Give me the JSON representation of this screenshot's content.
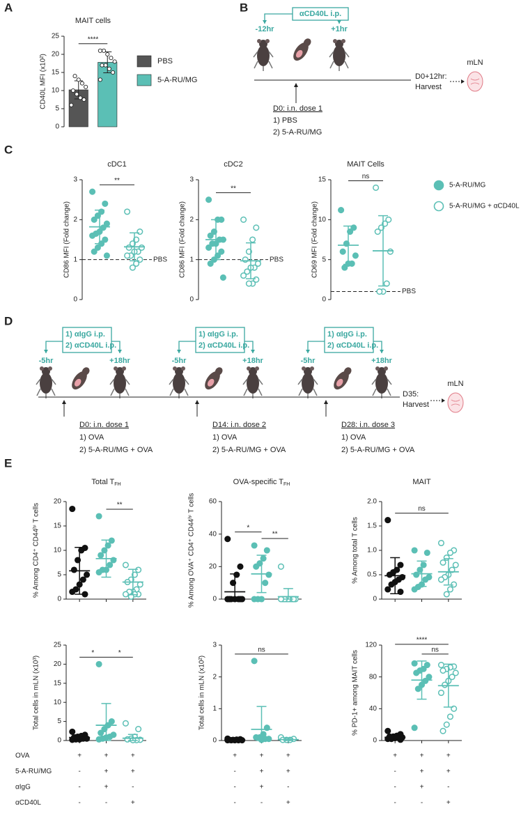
{
  "panel_labels": [
    "A",
    "B",
    "C",
    "D",
    "E"
  ],
  "chart_data": [
    {
      "type": "bar",
      "title": "MAIT cells",
      "ylabel": "CD40L MFI (x10²)",
      "categories": [
        "PBS",
        "5-A-RU/MG"
      ],
      "values": [
        10.2,
        17.8
      ],
      "errors": [
        2.5,
        2.9
      ],
      "colors": [
        "#555555",
        "#5bbfb5"
      ],
      "points": [
        [
          6,
          7.5,
          8,
          9,
          10,
          11,
          12,
          13,
          14
        ],
        [
          13,
          15,
          16,
          17,
          17,
          18,
          19,
          20,
          21,
          21
        ]
      ],
      "ylim": [
        0,
        25
      ],
      "yticks": [
        0,
        5,
        10,
        15,
        20,
        25
      ],
      "comparisons": [
        {
          "between": [
            0,
            1
          ],
          "label": "****"
        }
      ]
    },
    {
      "type": "dot",
      "title": "cDC1",
      "ylabel": "CD86 MFI (Fold change)",
      "ylim": [
        0,
        3
      ],
      "yticks": [
        0,
        1,
        2,
        3
      ],
      "reference": {
        "value": 1,
        "label": "PBS"
      },
      "series": [
        {
          "color": "#5bbfb5",
          "filled": true,
          "values": [
            2.7,
            2.4,
            2.2,
            2.1,
            2.0,
            1.9,
            1.8,
            1.7,
            1.65,
            1.6,
            1.5,
            1.4,
            1.3,
            1.2,
            1.1
          ],
          "mean": 1.82,
          "sd": 0.42
        },
        {
          "color": "#5bbfb5",
          "filled": false,
          "values": [
            2.2,
            1.7,
            1.5,
            1.4,
            1.3,
            1.3,
            1.2,
            1.2,
            1.1,
            1.1,
            1.0,
            0.9,
            0.8
          ],
          "mean": 1.32,
          "sd": 0.35
        }
      ],
      "comparisons": [
        {
          "between": [
            0,
            1
          ],
          "label": "**"
        }
      ]
    },
    {
      "type": "dot",
      "title": "cDC2",
      "ylabel": "CD86 MFI (Fold  change)",
      "ylim": [
        0,
        3
      ],
      "yticks": [
        0,
        1,
        2,
        3
      ],
      "reference": {
        "value": 1,
        "label": "PBS"
      },
      "series": [
        {
          "color": "#5bbfb5",
          "filled": true,
          "values": [
            2.5,
            2.0,
            2.0,
            1.7,
            1.6,
            1.5,
            1.5,
            1.4,
            1.4,
            1.3,
            1.2,
            1.1,
            1.0,
            0.9,
            0.55
          ],
          "mean": 1.5,
          "sd": 0.5
        },
        {
          "color": "#5bbfb5",
          "filled": false,
          "values": [
            2.0,
            1.8,
            1.5,
            1.2,
            1.0,
            0.9,
            0.8,
            0.8,
            0.7,
            0.6,
            0.5,
            0.4,
            0.4
          ],
          "mean": 0.97,
          "sd": 0.45
        }
      ],
      "comparisons": [
        {
          "between": [
            0,
            1
          ],
          "label": "**"
        }
      ]
    },
    {
      "type": "dot",
      "title": "MAIT Cells",
      "ylabel": "CD69 MFI (Fold change)",
      "ylim": [
        0,
        15
      ],
      "yticks": [
        0,
        5,
        10,
        15
      ],
      "reference": {
        "value": 1,
        "label": "PBS"
      },
      "series": [
        {
          "color": "#5bbfb5",
          "filled": true,
          "values": [
            11.2,
            9,
            8.5,
            7,
            6,
            5.5,
            4.5,
            4.5,
            4
          ],
          "mean": 6.8,
          "sd": 2.4
        },
        {
          "color": "#5bbfb5",
          "filled": false,
          "values": [
            14,
            10,
            9.5,
            9,
            8.5,
            6,
            2,
            1,
            1
          ],
          "mean": 6.1,
          "sd": 4.4
        }
      ],
      "comparisons": [
        {
          "between": [
            0,
            1
          ],
          "label": "ns"
        }
      ]
    },
    {
      "type": "dot",
      "title": "Total T",
      "title_sub": "FH",
      "ylabel": "% Among CD4⁺ CD44ʰⁱ T cells",
      "ylim": [
        0,
        20
      ],
      "yticks": [
        0,
        5,
        10,
        15,
        20
      ],
      "xaxis": true,
      "series": [
        {
          "color": "#111111",
          "filled": true,
          "values": [
            18.5,
            10.5,
            10,
            8,
            6,
            5,
            4,
            3,
            2,
            1.5,
            1
          ],
          "mean": 5.8,
          "sd": 4.8
        },
        {
          "color": "#5bbfb5",
          "filled": true,
          "values": [
            17,
            12,
            11,
            10,
            9,
            8,
            7,
            6,
            6,
            5.5
          ],
          "mean": 8.3,
          "sd": 3.8
        },
        {
          "color": "#5bbfb5",
          "filled": false,
          "values": [
            7,
            6,
            5,
            4,
            3.5,
            3,
            2,
            1.5,
            1.5,
            1,
            1,
            1,
            0.5
          ],
          "mean": 3.5,
          "sd": 2.6
        }
      ],
      "comparisons": [
        {
          "between": [
            1,
            2
          ],
          "label": "**"
        }
      ]
    },
    {
      "type": "dot",
      "title": "OVA-specific T",
      "title_sub": "FH",
      "ylabel": "% Among OVA⁺ CD4⁺ CD44ʰⁱ T cells",
      "ylim": [
        0,
        60
      ],
      "yticks": [
        0,
        20,
        40,
        60
      ],
      "xaxis": true,
      "series": [
        {
          "color": "#111111",
          "filled": true,
          "values": [
            37,
            20,
            15,
            10,
            0,
            0,
            0,
            0,
            0,
            0,
            0
          ],
          "mean": 4.5,
          "sd": 11
        },
        {
          "color": "#5bbfb5",
          "filled": true,
          "values": [
            33,
            30,
            25,
            22,
            20,
            15,
            10,
            0,
            0,
            0
          ],
          "mean": 15.5,
          "sd": 11.5
        },
        {
          "color": "#5bbfb5",
          "filled": false,
          "values": [
            20,
            0,
            0,
            0,
            0,
            0,
            0,
            0,
            0,
            0,
            0
          ],
          "mean": 1.5,
          "sd": 5
        }
      ],
      "comparisons": [
        {
          "between": [
            0,
            1
          ],
          "label": "*"
        },
        {
          "between": [
            1,
            2
          ],
          "label": "**"
        }
      ]
    },
    {
      "type": "dot",
      "title": "MAIT",
      "ylabel": "% Among total T cells",
      "ylim": [
        0,
        2
      ],
      "yticks": [
        0,
        {
          "value": 0.5,
          "label": "0.5"
        },
        {
          "value": 1,
          "label": "1.0"
        },
        {
          "value": 1.5,
          "label": "1.5"
        },
        {
          "value": 2,
          "label": "2.0"
        }
      ],
      "xaxis": true,
      "series": [
        {
          "color": "#111111",
          "filled": true,
          "values": [
            1.62,
            0.7,
            0.6,
            0.55,
            0.5,
            0.45,
            0.4,
            0.35,
            0.3,
            0.2,
            0.15
          ],
          "mean": 0.48,
          "sd": 0.37
        },
        {
          "color": "#5bbfb5",
          "filled": true,
          "values": [
            1.0,
            0.95,
            0.7,
            0.6,
            0.5,
            0.45,
            0.4,
            0.3,
            0.25,
            0.2
          ],
          "mean": 0.52,
          "sd": 0.26
        },
        {
          "color": "#5bbfb5",
          "filled": false,
          "values": [
            1.15,
            1.0,
            0.95,
            0.85,
            0.75,
            0.7,
            0.6,
            0.5,
            0.45,
            0.4,
            0.3,
            0.2,
            0.1
          ],
          "mean": 0.56,
          "sd": 0.27
        }
      ],
      "comparisons": [
        {
          "between": [
            0,
            2
          ],
          "label": "ns"
        }
      ]
    },
    {
      "type": "dot",
      "ylabel": "Total cells in mLN (x10³)",
      "ylim": [
        0,
        25
      ],
      "yticks": [
        0,
        5,
        10,
        15,
        20,
        25
      ],
      "xaxis": true,
      "series": [
        {
          "color": "#111111",
          "filled": true,
          "values": [
            2.3,
            1.5,
            1.2,
            1,
            0.8,
            0.5,
            0.5,
            0.3,
            0.3,
            0.2
          ],
          "mean": 0.8,
          "sd": 0.7
        },
        {
          "color": "#5bbfb5",
          "filled": true,
          "values": [
            20,
            5,
            4,
            3,
            2,
            1.5,
            1,
            0.8,
            0.5,
            0.3
          ],
          "mean": 4,
          "sd": 5.7
        },
        {
          "color": "#5bbfb5",
          "filled": false,
          "values": [
            4.5,
            3,
            1,
            0.5,
            0.3,
            0.2,
            0.1,
            0.1
          ],
          "mean": 0.6,
          "sd": 1
        }
      ],
      "comparisons": [
        {
          "between": [
            0,
            1
          ],
          "label": "*"
        },
        {
          "between": [
            1,
            2
          ],
          "label": "*"
        }
      ]
    },
    {
      "type": "dot",
      "ylabel": "Total cells in mLN (x10²)",
      "ylim": [
        0,
        3
      ],
      "yticks": [
        0,
        1,
        2,
        3
      ],
      "xaxis": true,
      "series": [
        {
          "color": "#111111",
          "filled": true,
          "values": [
            0.06,
            0.04,
            0.03,
            0.02,
            0.02,
            0.01,
            0.01,
            0.01,
            0.01,
            0.01
          ],
          "mean": 0.02,
          "sd": 0.03
        },
        {
          "color": "#5bbfb5",
          "filled": true,
          "values": [
            2.5,
            0.4,
            0.2,
            0.1,
            0.1,
            0.05,
            0.05,
            0.02
          ],
          "mean": 0.35,
          "sd": 0.72
        },
        {
          "color": "#5bbfb5",
          "filled": false,
          "values": [
            0.1,
            0.05,
            0.02,
            0.02,
            0.02
          ],
          "mean": 0.03,
          "sd": 0.04
        }
      ],
      "comparisons": [
        {
          "between": [
            0,
            2
          ],
          "label": "ns"
        }
      ]
    },
    {
      "type": "dot",
      "ylabel": "% PD-1+ among MAIT cells",
      "ylim": [
        0,
        120
      ],
      "yticks": [
        0,
        40,
        80,
        120
      ],
      "xaxis": true,
      "series": [
        {
          "color": "#111111",
          "filled": true,
          "values": [
            12,
            8,
            6,
            5,
            5,
            4,
            3,
            3,
            2,
            2,
            1
          ],
          "mean": 4,
          "sd": 3
        },
        {
          "color": "#5bbfb5",
          "filled": true,
          "values": [
            97,
            95,
            90,
            88,
            85,
            80,
            75,
            70,
            65,
            16
          ],
          "mean": 76,
          "sd": 24
        },
        {
          "color": "#5bbfb5",
          "filled": false,
          "values": [
            95,
            93,
            92,
            90,
            88,
            85,
            80,
            75,
            70,
            60,
            40,
            30,
            20,
            12
          ],
          "mean": 69,
          "sd": 27
        }
      ],
      "comparisons": [
        {
          "between": [
            1,
            2
          ],
          "label": "ns"
        },
        {
          "between": [
            0,
            2
          ],
          "label": "****"
        }
      ]
    }
  ],
  "legend_c": [
    {
      "name": "5-A-RU/MG",
      "color": "#5bbfb5",
      "filled": true
    },
    {
      "name": "5-A-RU/MG + αCD40L",
      "color": "#5bbfb5",
      "filled": false
    }
  ],
  "diagram_b": {
    "injection": "αCD40L i.p.",
    "before": "-12hr",
    "after": "+1hr",
    "dose": "D0: i.n. dose 1",
    "groups": [
      "1) PBS",
      "2) 5-A-RU/MG"
    ],
    "harvest": [
      "D0+12hr:",
      "Harvest"
    ],
    "node": "mLN"
  },
  "diagram_d": {
    "blocks": [
      {
        "injection": [
          "1) αIgG i.p.",
          "2) αCD40L i.p."
        ],
        "before": "-5hr",
        "after": "+18hr",
        "dose": "D0: i.n. dose 1",
        "groups": [
          "1) OVA",
          "2) 5-A-RU/MG + OVA"
        ]
      },
      {
        "injection": [
          "1) αIgG i.p.",
          "2) αCD40L i.p."
        ],
        "before": "-5hr",
        "after": "+18hr",
        "dose": "D14: i.n. dose 2",
        "groups": [
          "1) OVA",
          "2) 5-A-RU/MG + OVA"
        ]
      },
      {
        "injection": [
          "1) αIgG i.p.",
          "2) αCD40L i.p."
        ],
        "before": "-5hr",
        "after": "+18hr",
        "dose": "D28: i.n. dose 3",
        "groups": [
          "1) OVA",
          "2) 5-A-RU/MG + OVA"
        ]
      }
    ],
    "harvest": [
      "D35:",
      "Harvest"
    ],
    "node": "mLN"
  },
  "treatment_table": {
    "rows": [
      {
        "label": "OVA",
        "cells": [
          "+",
          "+",
          "+"
        ]
      },
      {
        "label": "5-A-RU/MG",
        "cells": [
          "-",
          "+",
          "+"
        ]
      },
      {
        "label": "αIgG",
        "cells": [
          "-",
          "+",
          "-"
        ]
      },
      {
        "label": "αCD40L",
        "cells": [
          "-",
          "-",
          "+"
        ]
      }
    ]
  }
}
